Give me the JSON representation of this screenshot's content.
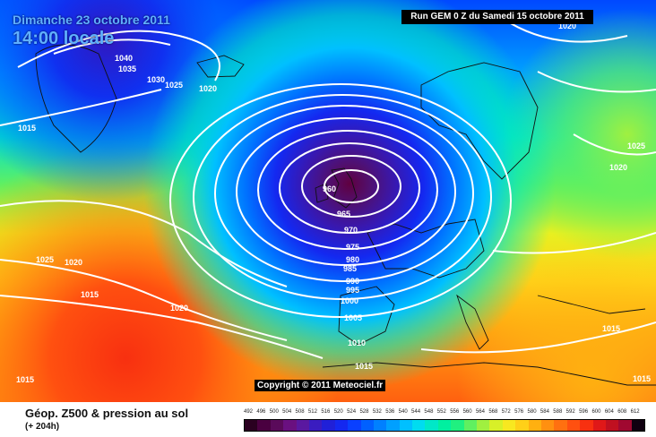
{
  "header": {
    "date_label": "Dimanche 23 octobre 2011",
    "time_label": "14:00 locale",
    "run_label": "Run GEM 0 Z du Samedi 15 octobre 2011"
  },
  "copyright": "Copyright © 2011 Meteociel.fr",
  "footer": {
    "title": "Géop. Z500 & pression au sol",
    "subtitle": "(+ 204h)"
  },
  "scale": {
    "values": [
      "492",
      "496",
      "500",
      "504",
      "508",
      "512",
      "516",
      "520",
      "524",
      "528",
      "532",
      "536",
      "540",
      "544",
      "548",
      "552",
      "556",
      "560",
      "564",
      "568",
      "572",
      "576",
      "580",
      "584",
      "588",
      "592",
      "596",
      "600",
      "604",
      "608",
      "612"
    ],
    "colors": [
      "#2a0020",
      "#4a0040",
      "#5a0a5a",
      "#6a1080",
      "#5a18a0",
      "#3a1cc0",
      "#2020d8",
      "#1428f0",
      "#0a40ff",
      "#0060ff",
      "#0080ff",
      "#00a0ff",
      "#00c0ff",
      "#00dcf0",
      "#00e8c8",
      "#00f0a0",
      "#20f080",
      "#60f060",
      "#a0f040",
      "#d8f028",
      "#f8e820",
      "#ffd018",
      "#ffb010",
      "#ff9010",
      "#ff7010",
      "#ff5010",
      "#f83010",
      "#e01818",
      "#c01020",
      "#a00830",
      "#100010"
    ]
  },
  "isobars": {
    "labels": [
      "1040",
      "1035",
      "1030",
      "1025",
      "1020",
      "1015",
      "960",
      "965",
      "970",
      "975",
      "980",
      "985",
      "990",
      "995",
      "1000",
      "1005",
      "1010",
      "1015",
      "1025",
      "1020",
      "1020",
      "1015",
      "1020",
      "1025",
      "1020",
      "1015",
      "1015",
      "1015"
    ]
  },
  "icons": {
    "low_center": "low-pressure-core",
    "high_center": "high-pressure-core"
  }
}
